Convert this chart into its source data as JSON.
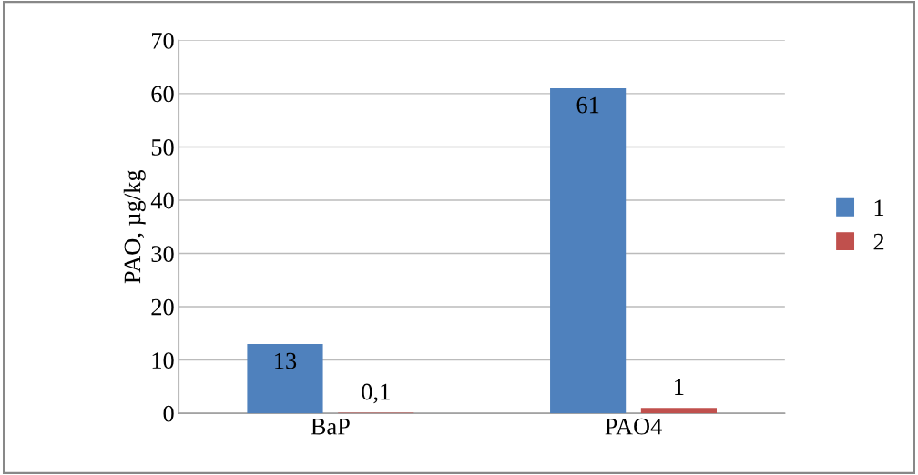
{
  "chart_data": {
    "type": "bar",
    "ylabel": "PAO, µg/kg",
    "categories": [
      "BaP",
      "PAO4"
    ],
    "series": [
      {
        "name": "1",
        "color": "#4f81bd",
        "values": [
          13,
          61
        ],
        "value_labels": [
          "13",
          "61"
        ]
      },
      {
        "name": "2",
        "color": "#c0504d",
        "values": [
          0.1,
          1
        ],
        "value_labels": [
          "0,1",
          "1"
        ]
      }
    ],
    "ylim": [
      0,
      70
    ],
    "yticks": [
      0,
      10,
      20,
      30,
      40,
      50,
      60,
      70
    ],
    "grid": "y",
    "legend": "right"
  }
}
